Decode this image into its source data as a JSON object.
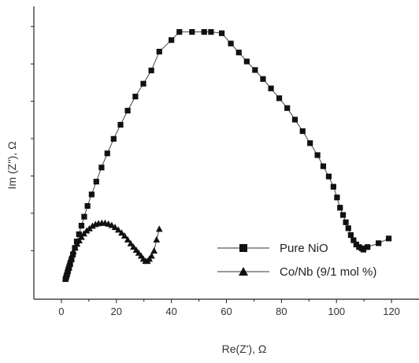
{
  "chart_data": {
    "type": "scatter",
    "xlabel": "Re(Z'), Ω",
    "ylabel": "Im (Z''), Ω",
    "xlim": [
      -10,
      130
    ],
    "ylim": [
      -4.5,
      64
    ],
    "xticks": [
      0,
      20,
      40,
      60,
      80,
      100,
      120
    ],
    "x_tick_labels": [
      "0",
      "20",
      "40",
      "60",
      "80",
      "100",
      "120"
    ],
    "y_ticks_minor_count": 7,
    "y_tick_labels_shown": false,
    "grid": false,
    "legend_position": "lower-right",
    "series": [
      {
        "name": "Pure NiO",
        "marker": "square",
        "line": "solid",
        "color": "#111111",
        "x": [
          1.5,
          1.8,
          2.1,
          2.4,
          2.8,
          3.2,
          3.7,
          4.2,
          4.9,
          5.6,
          6.4,
          7.3,
          8.3,
          9.5,
          11.0,
          12.7,
          14.6,
          16.7,
          19.0,
          21.5,
          24.1,
          26.9,
          29.8,
          32.7,
          35.6,
          40.0,
          42.9,
          47.5,
          51.9,
          54.4,
          58.3,
          61.6,
          64.5,
          67.4,
          70.4,
          73.3,
          76.2,
          79.2,
          82.1,
          84.9,
          87.7,
          90.4,
          93.1,
          95.2,
          97.2,
          98.9,
          100.2,
          101.3,
          102.4,
          103.4,
          104.3,
          105.2,
          106.2,
          107.2,
          108.2,
          109.2,
          109.8,
          111.3,
          115.3,
          119.0
        ],
        "y": [
          0.2,
          0.7,
          1.3,
          2.0,
          2.8,
          3.7,
          4.8,
          6.0,
          7.5,
          9.0,
          10.7,
          12.7,
          14.8,
          17.3,
          20.0,
          23.0,
          26.3,
          29.6,
          33.0,
          36.3,
          39.6,
          42.9,
          45.9,
          49.0,
          53.4,
          56.1,
          58.0,
          58.0,
          58.0,
          58.0,
          57.7,
          55.3,
          53.2,
          51.1,
          49.1,
          47.0,
          44.8,
          42.5,
          40.2,
          37.5,
          34.8,
          32.0,
          29.2,
          26.6,
          24.2,
          21.8,
          19.3,
          16.9,
          15.2,
          13.5,
          12.1,
          10.5,
          9.3,
          8.3,
          7.7,
          7.4,
          7.1,
          7.7,
          8.6,
          9.7
        ]
      },
      {
        "name": "Co/Nb (9/1 mol %)",
        "marker": "triangle",
        "line": "solid",
        "color": "#111111",
        "x": [
          1.5,
          1.6,
          1.8,
          2.0,
          2.3,
          2.6,
          3.0,
          3.4,
          3.9,
          4.4,
          5.0,
          5.7,
          6.5,
          7.3,
          8.2,
          9.2,
          10.2,
          11.3,
          12.4,
          13.5,
          14.7,
          15.9,
          17.1,
          18.3,
          19.5,
          20.7,
          21.9,
          23.0,
          24.1,
          25.2,
          26.2,
          27.2,
          28.1,
          29.0,
          29.8,
          30.6,
          31.3,
          32.0,
          32.8,
          33.7,
          34.6,
          35.6
        ],
        "y": [
          0.3,
          0.8,
          1.4,
          2.0,
          2.7,
          3.4,
          4.2,
          5.0,
          5.9,
          6.7,
          7.6,
          8.4,
          9.2,
          10.0,
          10.8,
          11.5,
          12.0,
          12.6,
          13.0,
          13.2,
          13.3,
          13.3,
          13.1,
          12.8,
          12.3,
          11.7,
          11.0,
          10.3,
          9.4,
          8.5,
          7.7,
          7.0,
          6.3,
          5.6,
          4.9,
          4.4,
          4.4,
          4.9,
          5.6,
          6.8,
          9.4,
          11.9
        ]
      }
    ]
  }
}
